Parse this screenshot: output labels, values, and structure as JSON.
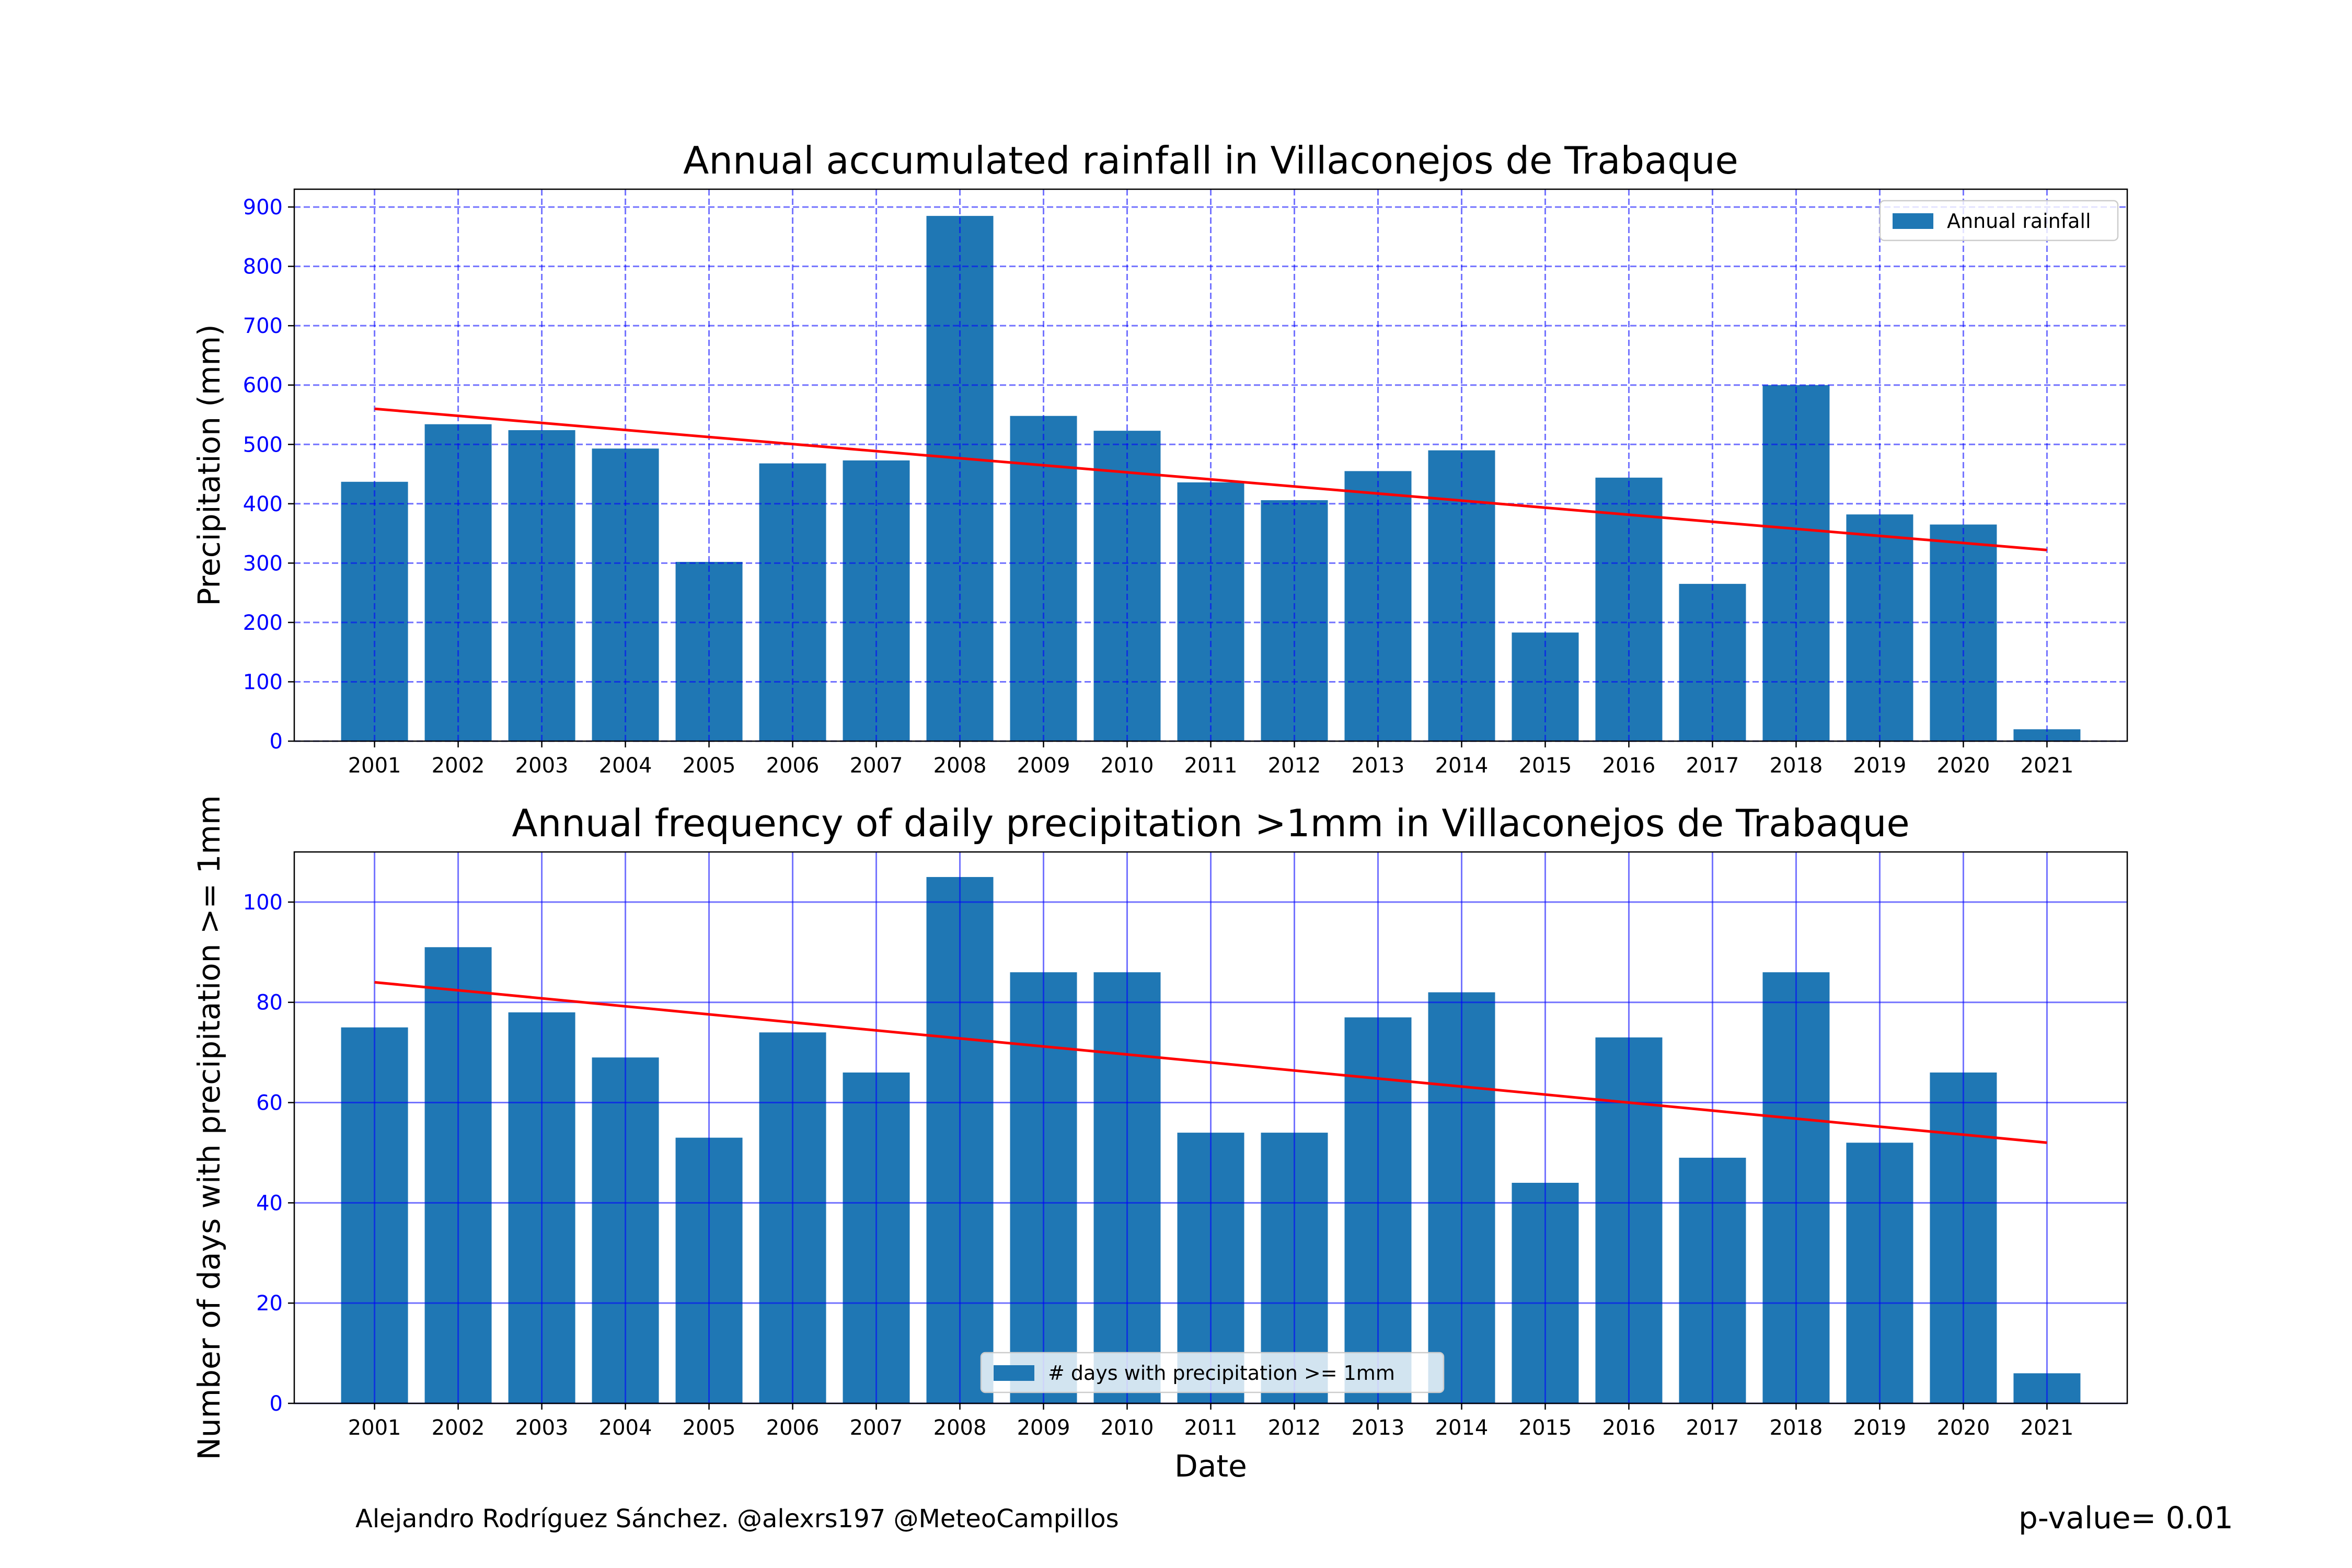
{
  "chart_data": [
    {
      "type": "bar",
      "title": "Annual accumulated rainfall in Villaconejos de Trabaque",
      "xlabel": "",
      "ylabel": "Precipitation (mm)",
      "categories": [
        "2001",
        "2002",
        "2003",
        "2004",
        "2005",
        "2006",
        "2007",
        "2008",
        "2009",
        "2010",
        "2011",
        "2012",
        "2013",
        "2014",
        "2015",
        "2016",
        "2017",
        "2018",
        "2019",
        "2020",
        "2021"
      ],
      "series": [
        {
          "name": "Annual rainfall",
          "values": [
            437,
            534,
            524,
            493,
            302,
            468,
            473,
            885,
            548,
            523,
            436,
            406,
            455,
            490,
            183,
            444,
            265,
            600,
            382,
            365,
            20
          ],
          "color": "#1f77b4"
        }
      ],
      "trend": {
        "start": 560,
        "end": 322,
        "color": "#ff0000"
      },
      "ylim": [
        0,
        930
      ],
      "yticks": [
        0,
        100,
        200,
        300,
        400,
        500,
        600,
        700,
        800,
        900
      ],
      "grid": {
        "on": true,
        "style": "dashed",
        "color": "#0000ff"
      },
      "tick_color": "#0000ff",
      "legend": {
        "placement": "top-right",
        "label": "Annual rainfall"
      }
    },
    {
      "type": "bar",
      "title": "Annual frequency of daily precipitation >1mm in Villaconejos de Trabaque",
      "xlabel": "Date",
      "ylabel": "Number of days with precipitation >= 1mm",
      "categories": [
        "2001",
        "2002",
        "2003",
        "2004",
        "2005",
        "2006",
        "2007",
        "2008",
        "2009",
        "2010",
        "2011",
        "2012",
        "2013",
        "2014",
        "2015",
        "2016",
        "2017",
        "2018",
        "2019",
        "2020",
        "2021"
      ],
      "series": [
        {
          "name": "# days with precipitation >= 1mm",
          "values": [
            75,
            91,
            78,
            69,
            53,
            74,
            66,
            105,
            86,
            86,
            54,
            54,
            77,
            82,
            44,
            73,
            49,
            86,
            52,
            66,
            6
          ],
          "color": "#1f77b4"
        }
      ],
      "trend": {
        "start": 84,
        "end": 52,
        "color": "#ff0000"
      },
      "ylim": [
        0,
        110
      ],
      "yticks": [
        0,
        20,
        40,
        60,
        80,
        100
      ],
      "grid": {
        "on": true,
        "style": "solid",
        "color": "#0000ff"
      },
      "tick_color": "#0000ff",
      "legend": {
        "placement": "bottom-center",
        "label": "# days with precipitation >= 1mm"
      }
    }
  ],
  "footer": {
    "credit": "Alejandro Rodríguez Sánchez. @alexrs197 @MeteoCampillos",
    "pvalue": "p-value= 0.01"
  }
}
